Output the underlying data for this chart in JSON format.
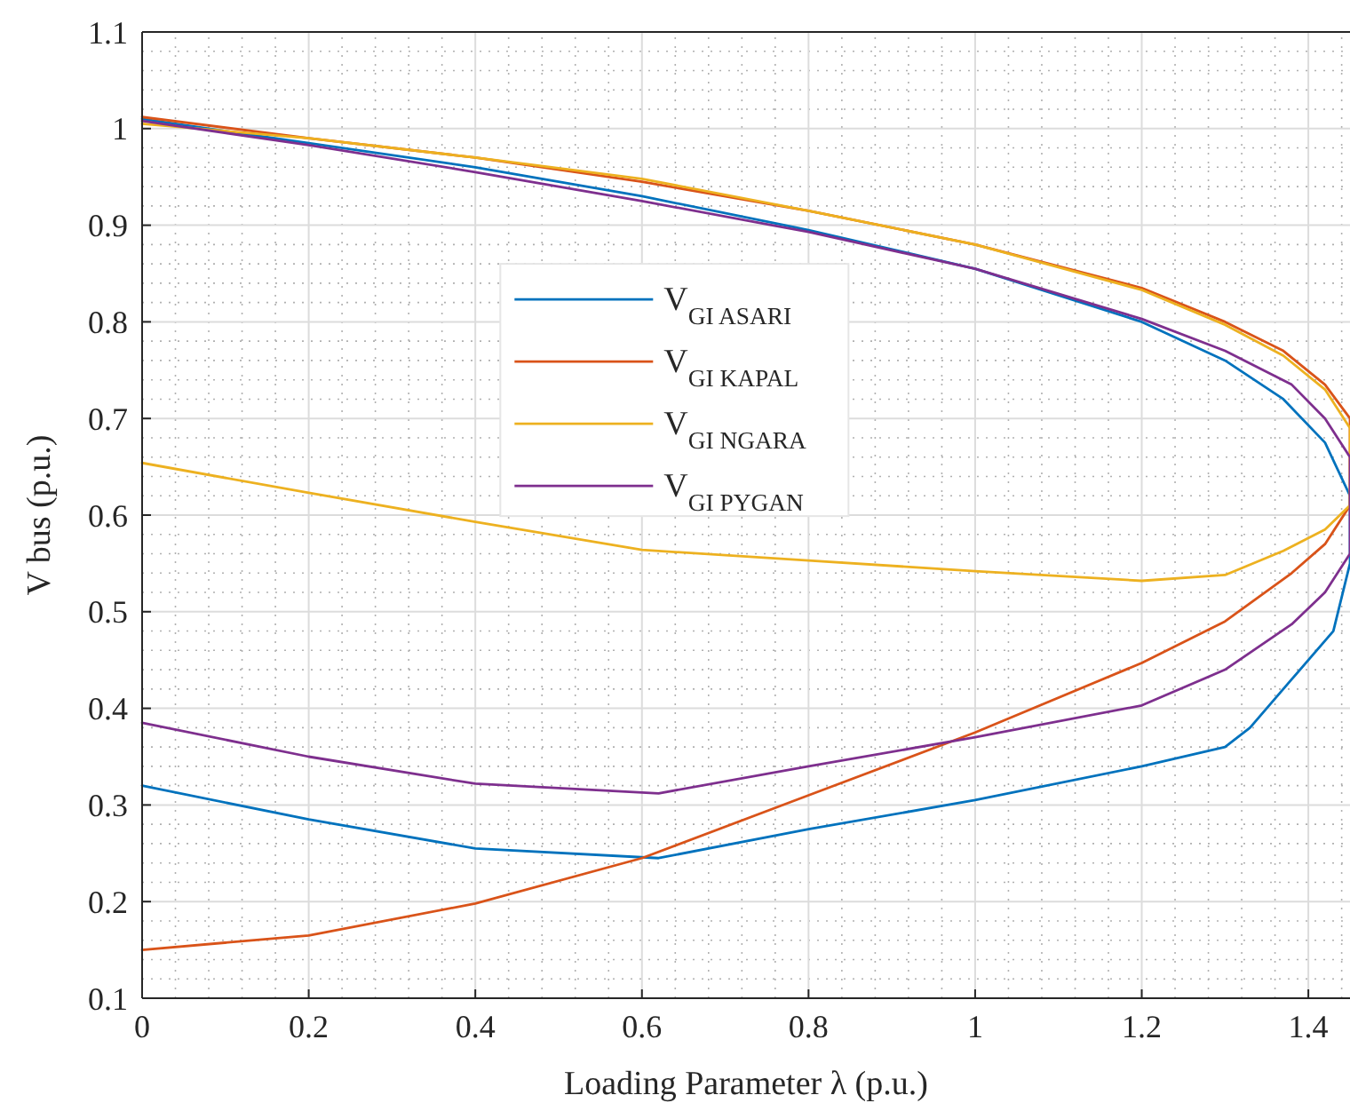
{
  "chart_data": {
    "type": "line",
    "xlabel": "Loading Parameter λ (p.u.)",
    "ylabel": "V bus (p.u.)",
    "xlim": [
      0,
      1.45
    ],
    "ylim": [
      0.1,
      1.1
    ],
    "xticks": [
      0,
      0.2,
      0.4,
      0.6,
      0.8,
      1,
      1.2,
      1.4
    ],
    "yticks": [
      0.1,
      0.2,
      0.3,
      0.4,
      0.5,
      0.6,
      0.7,
      0.8,
      0.9,
      1,
      1.1
    ],
    "grid": true,
    "legend": "left",
    "line_style": "solid",
    "series": [
      {
        "name": "V$_{GI ASARI}$",
        "color": "#0072bd",
        "x": [
          0,
          0.2,
          0.4,
          0.6,
          0.8,
          1,
          1.2,
          1.3,
          1.37,
          1.42,
          1.45,
          1.45,
          1.43,
          1.38,
          1.33,
          1.3,
          1.2,
          1,
          0.8,
          0.62,
          0.4,
          0.2,
          0
        ],
        "values": [
          1.01,
          0.985,
          0.96,
          0.93,
          0.895,
          0.855,
          0.8,
          0.76,
          0.72,
          0.675,
          0.62,
          0.55,
          0.48,
          0.43,
          0.38,
          0.36,
          0.34,
          0.305,
          0.275,
          0.245,
          0.255,
          0.285,
          0.32
        ]
      },
      {
        "name": "V$_{GI KAPAL}$",
        "color": "#d95319",
        "x": [
          0,
          0.2,
          0.4,
          0.6,
          0.8,
          1,
          1.2,
          1.3,
          1.37,
          1.42,
          1.45,
          1.45,
          1.42,
          1.38,
          1.3,
          1.2,
          1,
          0.8,
          0.6,
          0.4,
          0.2,
          0
        ],
        "values": [
          1.012,
          0.99,
          0.97,
          0.945,
          0.915,
          0.88,
          0.835,
          0.8,
          0.77,
          0.735,
          0.7,
          0.61,
          0.57,
          0.54,
          0.49,
          0.447,
          0.375,
          0.31,
          0.245,
          0.198,
          0.165,
          0.15
        ]
      },
      {
        "name": "V$_{GI NGARA}$",
        "color": "#edb120",
        "x": [
          0,
          0.2,
          0.4,
          0.6,
          0.8,
          1,
          1.2,
          1.3,
          1.37,
          1.42,
          1.45,
          1.45,
          1.42,
          1.37,
          1.3,
          1.2,
          1,
          0.8,
          0.6,
          0.4,
          0.2,
          0
        ],
        "values": [
          1.005,
          0.99,
          0.97,
          0.948,
          0.915,
          0.88,
          0.833,
          0.797,
          0.765,
          0.73,
          0.69,
          0.61,
          0.585,
          0.563,
          0.538,
          0.532,
          0.542,
          0.553,
          0.564,
          0.593,
          0.623,
          0.654
        ]
      },
      {
        "name": "V$_{GI PYGAN}$",
        "color": "#7e2f8e",
        "x": [
          0,
          0.2,
          0.4,
          0.6,
          0.8,
          1,
          1.2,
          1.3,
          1.38,
          1.42,
          1.45,
          1.45,
          1.42,
          1.38,
          1.3,
          1.2,
          1,
          0.8,
          0.62,
          0.4,
          0.2,
          0
        ],
        "values": [
          1.008,
          0.983,
          0.955,
          0.925,
          0.893,
          0.855,
          0.803,
          0.77,
          0.735,
          0.7,
          0.66,
          0.56,
          0.52,
          0.487,
          0.44,
          0.403,
          0.37,
          0.34,
          0.312,
          0.322,
          0.35,
          0.385
        ]
      }
    ]
  }
}
